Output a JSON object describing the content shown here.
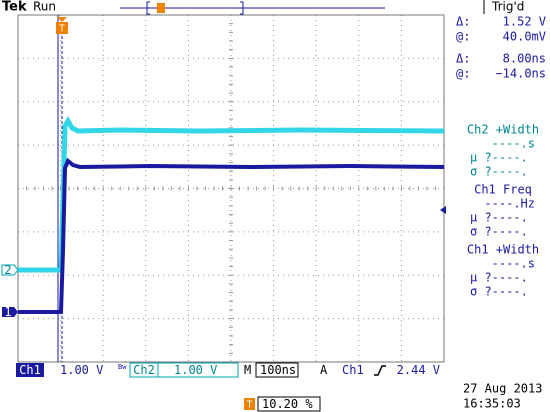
{
  "header": {
    "brand": "Tek",
    "status": "Run",
    "trigger_status": "Trig'd"
  },
  "cursors": [
    {
      "label": "Δ:",
      "value": "1.52 V"
    },
    {
      "label": "@:",
      "value": "40.0mV"
    },
    {
      "label": "Δ:",
      "value": "8.00ns"
    },
    {
      "label": "@:",
      "value": "−14.0ns"
    }
  ],
  "measurements": [
    {
      "title": "Ch2 +Width",
      "value": "----.s",
      "mean": "μ ?----.",
      "std": "σ ?----."
    },
    {
      "title": "Ch1 Freq",
      "value": "----.Hz",
      "mean": "μ ?----.",
      "std": "σ ?----."
    },
    {
      "title": "Ch1 +Width",
      "value": "----.s",
      "mean": "μ ?----.",
      "std": "σ ?----."
    }
  ],
  "channel_markers": [
    "2",
    "1"
  ],
  "trigger_marker": "T",
  "footer": {
    "ch1_label": "Ch1",
    "ch1_scale": "1.00 V",
    "bandwidth_flag": "Bw",
    "ch2_label": "Ch2",
    "ch2_scale": "1.00 V",
    "timebase_label": "M",
    "timebase": "100ns",
    "trigger_label": "A",
    "trigger_source": "Ch1",
    "trigger_level": "2.44 V",
    "trigger_position_marker": "T",
    "trigger_position": "10.20 %",
    "date": "27 Aug 2013",
    "time": "16:35:03"
  }
}
